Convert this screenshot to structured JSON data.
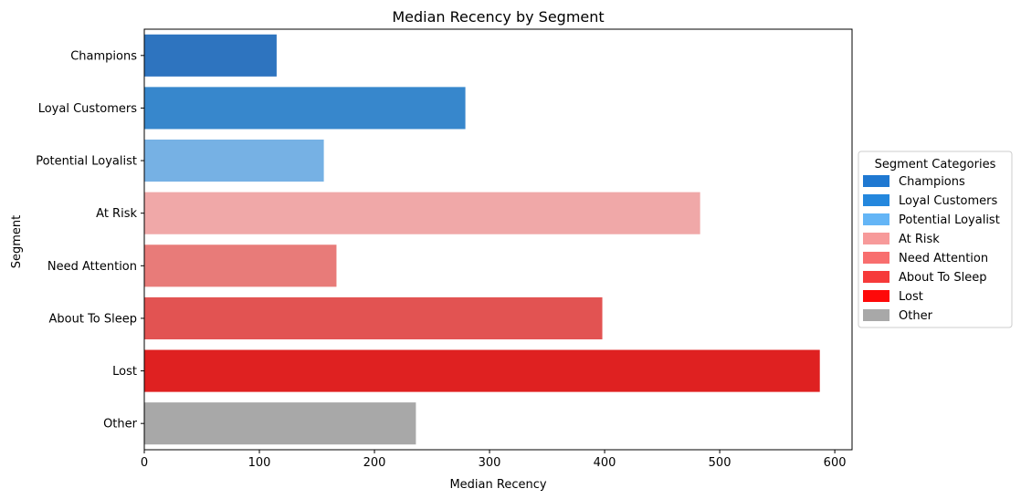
{
  "chart_data": {
    "type": "bar",
    "orientation": "horizontal",
    "title": "Median Recency by Segment",
    "xlabel": "Median Recency",
    "ylabel": "Segment",
    "xlim": [
      0,
      615
    ],
    "x_ticks": [
      0,
      100,
      200,
      300,
      400,
      500,
      600
    ],
    "grid": false,
    "categories": [
      "Champions",
      "Loyal Customers",
      "Potential Loyalist",
      "At Risk",
      "Need Attention",
      "About To Sleep",
      "Lost",
      "Other"
    ],
    "values": [
      115,
      279,
      156,
      483,
      167,
      398,
      587,
      236
    ],
    "bar_colors": [
      "#2e74bf",
      "#3787cc",
      "#76b1e4",
      "#f0a8a8",
      "#e87b79",
      "#e25352",
      "#df2121",
      "#a8a8a8"
    ],
    "legend": {
      "title": "Segment Categories",
      "placement": "center-right outside",
      "entries": [
        {
          "label": "Champions",
          "color": "#1f78d1"
        },
        {
          "label": "Loyal Customers",
          "color": "#2487dd"
        },
        {
          "label": "Potential Loyalist",
          "color": "#64b5f6"
        },
        {
          "label": "At Risk",
          "color": "#f79a9a"
        },
        {
          "label": "Need Attention",
          "color": "#f86e6e"
        },
        {
          "label": "About To Sleep",
          "color": "#f63a3a"
        },
        {
          "label": "Lost",
          "color": "#fe0909"
        },
        {
          "label": "Other",
          "color": "#a8a8a8"
        }
      ]
    }
  }
}
